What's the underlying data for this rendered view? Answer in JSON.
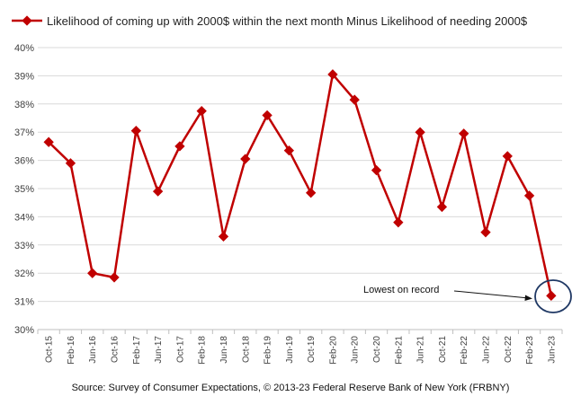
{
  "chart_data": {
    "type": "line",
    "title": "",
    "legend": "Likelihood of coming up with 2000$ within the next month Minus Likelihood of needing 2000$",
    "legend_position": "top",
    "categories": [
      "Oct-15",
      "Feb-16",
      "Jun-16",
      "Oct-16",
      "Feb-17",
      "Jun-17",
      "Oct-17",
      "Feb-18",
      "Jun-18",
      "Oct-18",
      "Feb-19",
      "Jun-19",
      "Oct-19",
      "Feb-20",
      "Jun-20",
      "Oct-20",
      "Feb-21",
      "Jun-21",
      "Oct-21",
      "Feb-22",
      "Jun-22",
      "Oct-22",
      "Feb-23",
      "Jun-23"
    ],
    "series": [
      {
        "name": "Likelihood of coming up with 2000$ within the next month Minus Likelihood of needing 2000$",
        "values": [
          36.65,
          35.9,
          32.0,
          31.85,
          37.05,
          34.9,
          36.5,
          37.75,
          33.3,
          36.05,
          37.6,
          36.35,
          34.85,
          39.05,
          38.15,
          35.65,
          33.8,
          37.0,
          34.35,
          36.95,
          33.45,
          36.15,
          34.75,
          31.2
        ]
      }
    ],
    "yticks": [
      "30%",
      "31%",
      "32%",
      "33%",
      "34%",
      "35%",
      "36%",
      "37%",
      "38%",
      "39%",
      "40%"
    ],
    "ylim": [
      30,
      40
    ],
    "grid": true,
    "xlabel": "",
    "ylabel": "",
    "annotation": {
      "text": "Lowest on record",
      "target": "Jun-23"
    },
    "colors": {
      "series": "#c00000",
      "grid": "#d9d9d9",
      "axis": "#bfbfbf",
      "annotation_circle": "#1f3864"
    }
  },
  "source": "Source: Survey of Consumer Expectations, © 2013-23 Federal Reserve Bank of New York (FRBNY)"
}
